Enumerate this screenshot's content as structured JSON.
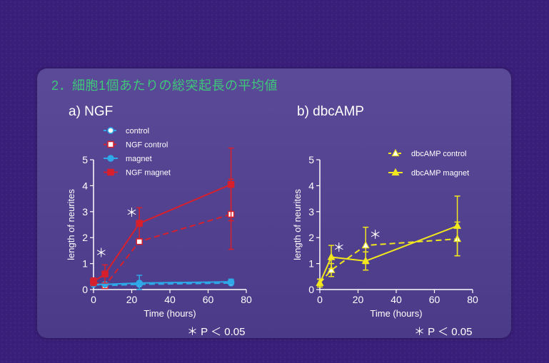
{
  "heading": "2．細胞1個あたりの総突起長の平均値",
  "colors": {
    "control": "#2ea8e8",
    "ngf": "#d8202c",
    "dbc": "#f2e61e",
    "heading": "#3fc77a"
  },
  "chart_data": [
    {
      "type": "line",
      "title": "a) NGF",
      "xlabel": "Time (hours)",
      "ylabel": "length of neurites",
      "xlim": [
        0,
        80
      ],
      "ylim": [
        0,
        5
      ],
      "xticks": [
        "0",
        "20",
        "40",
        "60",
        "80"
      ],
      "yticks": [
        "0",
        "1",
        "2",
        "3",
        "4",
        "5"
      ],
      "significance_note": "＊ P ＜ 0.05",
      "asterisks": [
        {
          "label": "＊",
          "x": 4,
          "y": 1.25
        },
        {
          "label": "＊",
          "x": 20,
          "y": 2.8
        }
      ],
      "legend_position": "top-left",
      "series": [
        {
          "name": "control",
          "style": "dashed",
          "marker": "circle-open",
          "color_key": "control",
          "x": [
            0,
            6,
            24,
            72
          ],
          "y": [
            0.2,
            0.15,
            0.2,
            0.25
          ],
          "err": [
            0.05,
            0.05,
            0.05,
            0.05
          ]
        },
        {
          "name": "NGF control",
          "style": "dashed",
          "marker": "square-open",
          "color_key": "ngf",
          "x": [
            0,
            6,
            24,
            72
          ],
          "y": [
            0.3,
            0.15,
            1.85,
            2.9
          ],
          "err": [
            0.1,
            0.1,
            0.1,
            1.35
          ]
        },
        {
          "name": "magnet",
          "style": "solid",
          "marker": "circle",
          "color_key": "control",
          "x": [
            0,
            6,
            24,
            72
          ],
          "y": [
            0.2,
            0.2,
            0.25,
            0.3
          ],
          "err": [
            0.05,
            0.05,
            0.3,
            0.1
          ]
        },
        {
          "name": "NGF magnet",
          "style": "solid",
          "marker": "square",
          "color_key": "ngf",
          "x": [
            0,
            6,
            24,
            72
          ],
          "y": [
            0.3,
            0.6,
            2.55,
            4.05
          ],
          "err": [
            0.15,
            0.35,
            0.6,
            1.4
          ]
        }
      ]
    },
    {
      "type": "line",
      "title": "b) dbcAMP",
      "xlabel": "Time (hours)",
      "ylabel": "length of neurites",
      "xlim": [
        0,
        80
      ],
      "ylim": [
        0,
        5
      ],
      "xticks": [
        "0",
        "20",
        "40",
        "60",
        "80"
      ],
      "yticks": [
        "0",
        "1",
        "2",
        "3",
        "4",
        "5"
      ],
      "significance_note": "＊ P ＜ 0.05",
      "asterisks": [
        {
          "label": "＊",
          "x": 10,
          "y": 1.45
        },
        {
          "label": "＊",
          "x": 29,
          "y": 1.95
        }
      ],
      "legend_position": "top-right",
      "series": [
        {
          "name": "dbcAMP control",
          "style": "dashed",
          "marker": "triangle-open",
          "color_key": "dbc",
          "x": [
            0,
            6,
            24,
            72
          ],
          "y": [
            0.25,
            0.75,
            1.7,
            1.95
          ],
          "err": [
            0.15,
            0.25,
            0.7,
            0.65
          ]
        },
        {
          "name": "dbcAMP magnet",
          "style": "solid",
          "marker": "triangle",
          "color_key": "dbc",
          "x": [
            0,
            6,
            24,
            72
          ],
          "y": [
            0.25,
            1.25,
            1.1,
            2.45
          ],
          "err": [
            0.15,
            0.45,
            0.35,
            1.15
          ]
        }
      ]
    }
  ]
}
